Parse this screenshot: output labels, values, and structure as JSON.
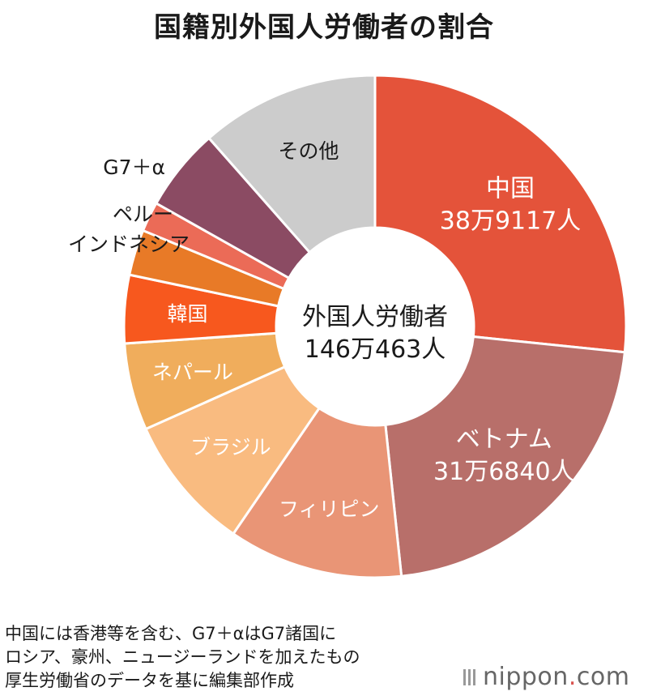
{
  "title": "国籍別外国人労働者の割合",
  "center": {
    "line1": "外国人労働者",
    "line2": "146万463人"
  },
  "notes": [
    "中国には香港等を含む、G7＋αはG7諸国に",
    "ロシア、豪州、ニュージーランドを加えたもの",
    "厚生労働省のデータを基に編集部作成"
  ],
  "brand": {
    "name": "nippon",
    "dot": ".",
    "suffix": "com"
  },
  "chart_data": {
    "type": "pie",
    "total_label": "146万463人",
    "slices": [
      {
        "label": "中国",
        "value_label": "38万9117人",
        "value": 389117,
        "color": "#e4533a",
        "label_color": "#ffffff",
        "label_inside": true
      },
      {
        "label": "ベトナム",
        "value_label": "31万6840人",
        "value": 316840,
        "color": "#b86f6a",
        "label_color": "#ffffff",
        "label_inside": true
      },
      {
        "label": "フィリピン",
        "value_label": "",
        "value": 164000,
        "color": "#e99576",
        "label_color": "#ffffff",
        "label_inside": true
      },
      {
        "label": "ブラジル",
        "value_label": "",
        "value": 128000,
        "color": "#f9bb80",
        "label_color": "#ffffff",
        "label_inside": true
      },
      {
        "label": "ネパール",
        "value_label": "",
        "value": 82000,
        "color": "#f0ad5c",
        "label_color": "#ffffff",
        "label_inside": true
      },
      {
        "label": "韓国",
        "value_label": "",
        "value": 64000,
        "color": "#f7581e",
        "label_color": "#ffffff",
        "label_inside": true
      },
      {
        "label": "インドネシア",
        "value_label": "",
        "value": 43000,
        "color": "#e87a27",
        "label_color": "#1a1a1a",
        "label_inside": false
      },
      {
        "label": "ペルー",
        "value_label": "",
        "value": 28000,
        "color": "#eb6b57",
        "label_color": "#1a1a1a",
        "label_inside": false
      },
      {
        "label": "G7＋α",
        "value_label": "",
        "value": 78000,
        "color": "#8b4b63",
        "label_color": "#1a1a1a",
        "label_inside": false
      },
      {
        "label": "その他",
        "value_label": "",
        "value": 168000,
        "color": "#cccccc",
        "label_color": "#1a1a1a",
        "label_inside": true
      }
    ]
  }
}
